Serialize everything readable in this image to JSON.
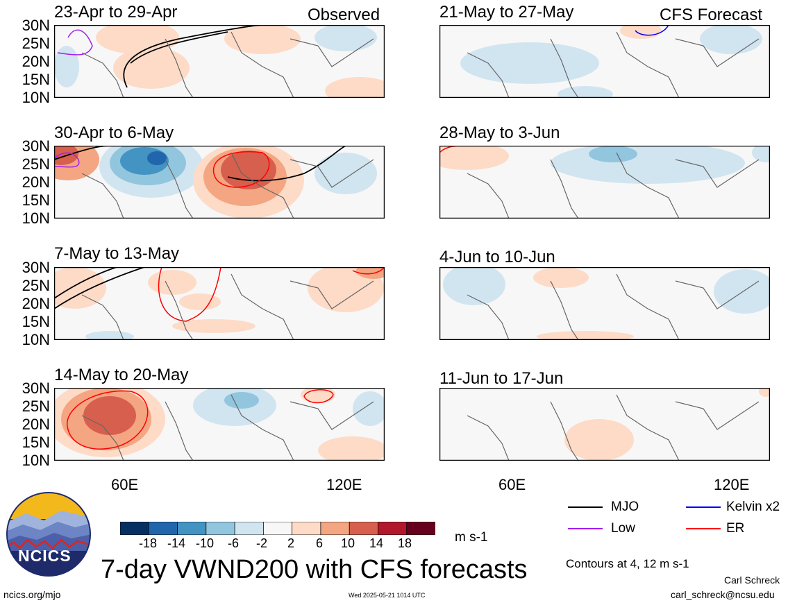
{
  "left_column_label": "Observed",
  "right_column_label": "CFS Forecast",
  "panels": [
    {
      "title": "23-Apr to 29-Apr"
    },
    {
      "title": "30-Apr to 6-May"
    },
    {
      "title": "7-May to 13-May"
    },
    {
      "title": "14-May to 20-May"
    },
    {
      "title": "21-May to 27-May"
    },
    {
      "title": "28-May to 3-Jun"
    },
    {
      "title": "4-Jun to 10-Jun"
    },
    {
      "title": "11-Jun to 17-Jun"
    }
  ],
  "lat_labels": [
    "30N",
    "25N",
    "20N",
    "15N",
    "10N"
  ],
  "lon_labels": [
    "60E",
    "120E"
  ],
  "legend": [
    {
      "label": "MJO",
      "color": "#000000"
    },
    {
      "label": "Kelvin x2",
      "color": "#0000ff"
    },
    {
      "label": "Low",
      "color": "#a020f0"
    },
    {
      "label": "ER",
      "color": "#ff0000"
    }
  ],
  "colorbar": {
    "labels": [
      "-18",
      "-14",
      "-10",
      "-6",
      "-2",
      "2",
      "6",
      "10",
      "14",
      "18"
    ],
    "colors": [
      "#053061",
      "#2166ac",
      "#4393c3",
      "#92c5de",
      "#d1e5f0",
      "#f7f7f7",
      "#fddbc7",
      "#f4a582",
      "#d6604d",
      "#b2182b",
      "#67001f"
    ],
    "unit": "m s-1"
  },
  "contours_note": "Contours at 4, 12 m s-1",
  "main_title": "7-day VWND200 with CFS forecasts",
  "logo_text": "NCICS",
  "website": "ncics.org/mjo",
  "timestamp": "Wed 2025-05-21 1014 UTC",
  "author": "Carl Schreck",
  "email": "carl_schreck@ncsu.edu"
}
